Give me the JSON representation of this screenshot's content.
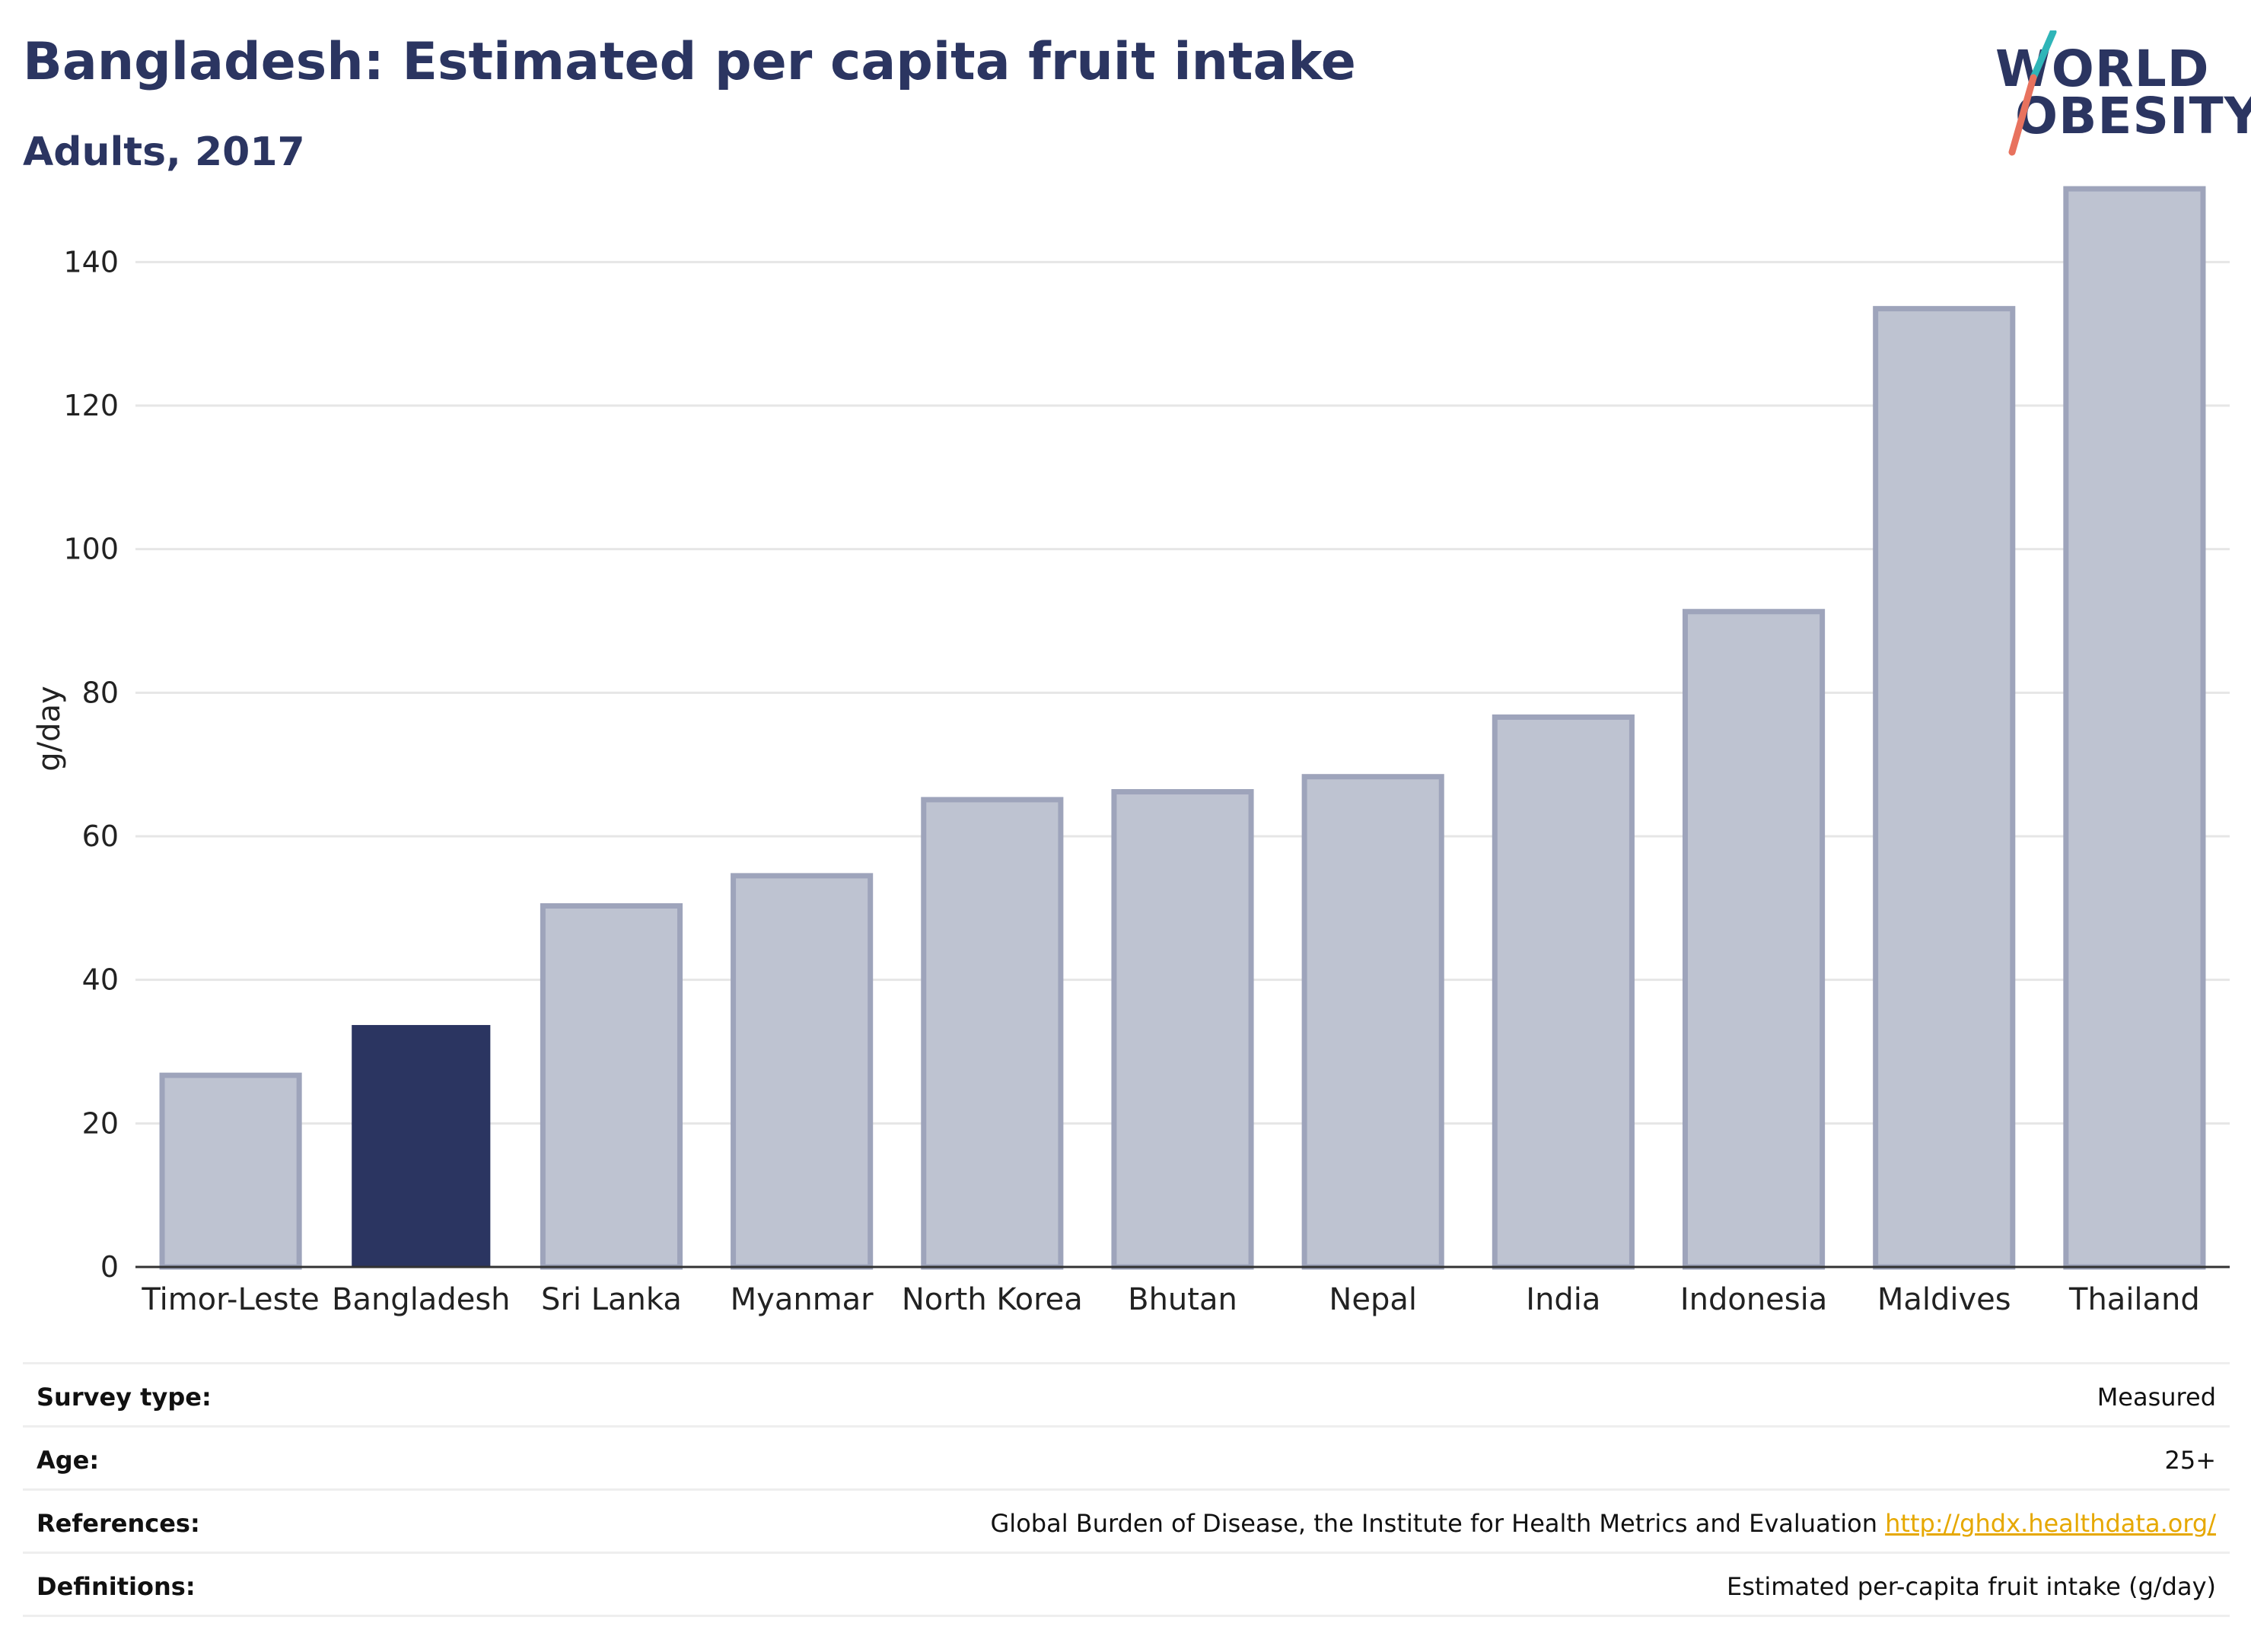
{
  "header": {
    "title": "Bangladesh: Estimated per capita fruit intake",
    "subtitle": "Adults, 2017"
  },
  "logo": {
    "line1": "WORLD",
    "line2": "OBESITY",
    "colors": {
      "text": "#2b3561",
      "slash_top": "#2fb5b8",
      "slash_bottom": "#e8725e"
    }
  },
  "colors": {
    "highlight_bar": "#2b3561",
    "other_bar_fill": "#bec3d1",
    "other_bar_stroke": "#9ea4bb",
    "grid": "#e6e6e6",
    "axis": "#333333",
    "link": "#e6a800"
  },
  "chart_data": {
    "type": "bar",
    "categories": [
      "Timor-Leste",
      "Bangladesh",
      "Sri Lanka",
      "Myanmar",
      "North Korea",
      "Bhutan",
      "Nepal",
      "India",
      "Indonesia",
      "Maldives",
      "Thailand"
    ],
    "values": [
      26.7,
      33.6,
      50.3,
      54.5,
      65.1,
      66.2,
      68.3,
      76.6,
      91.3,
      133.5,
      150.2
    ],
    "highlight": "Bangladesh",
    "title": "Bangladesh: Estimated per capita fruit intake",
    "subtitle": "Adults, 2017",
    "xlabel": "",
    "ylabel": "g/day",
    "ylim": [
      0,
      150
    ],
    "yticks": [
      0,
      20,
      40,
      60,
      80,
      100,
      120,
      140
    ],
    "grid": true,
    "legend": "none"
  },
  "meta": {
    "survey_type": {
      "label": "Survey type:",
      "value": "Measured"
    },
    "age": {
      "label": "Age:",
      "value": "25+"
    },
    "references": {
      "label": "References:",
      "value": "Global Burden of Disease, the Institute for Health Metrics and Evaluation",
      "link": "http://ghdx.healthdata.org/"
    },
    "definitions": {
      "label": "Definitions:",
      "value": "Estimated per-capita fruit intake (g/day)"
    }
  }
}
